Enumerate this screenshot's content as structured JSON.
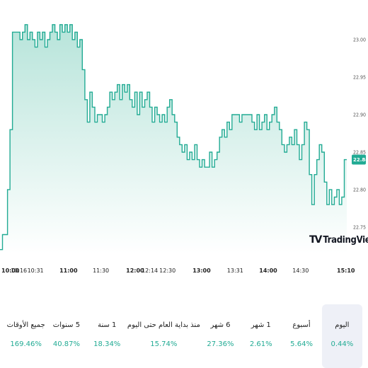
{
  "chart_data": {
    "type": "area",
    "y_ticks": [
      "23.00",
      "22.95",
      "22.90",
      "22.85",
      "22.80",
      "22.75"
    ],
    "ylim": [
      22.715,
      23.034
    ],
    "x_ticks": [
      {
        "label": "10:00",
        "major": true
      },
      {
        "label": "10:16",
        "major": false
      },
      {
        "label": "10:31",
        "major": false
      },
      {
        "label": "11:00",
        "major": true
      },
      {
        "label": "11:30",
        "major": false
      },
      {
        "label": "12:00",
        "major": true
      },
      {
        "label": "12:14",
        "major": false
      },
      {
        "label": "12:30",
        "major": false
      },
      {
        "label": "13:00",
        "major": true
      },
      {
        "label": "13:31",
        "major": false
      },
      {
        "label": "14:00",
        "major": true
      },
      {
        "label": "14:30",
        "major": false
      },
      {
        "label": "15:10",
        "major": true
      }
    ],
    "last_value": "22.84",
    "colors": {
      "line": "#22ab94",
      "fill_top": "#b7e4da",
      "fill_bottom": "#ffffff",
      "badge": "#22ab94"
    },
    "series_values": [
      22.72,
      22.74,
      22.74,
      22.8,
      22.88,
      23.01,
      23.01,
      23.01,
      23.0,
      23.01,
      23.02,
      23.0,
      23.01,
      23.0,
      22.99,
      23.01,
      23.0,
      23.01,
      22.99,
      23.0,
      23.01,
      23.02,
      23.01,
      23.0,
      23.02,
      23.01,
      23.02,
      23.01,
      23.02,
      23.0,
      23.01,
      22.99,
      23.0,
      22.96,
      22.92,
      22.89,
      22.93,
      22.91,
      22.89,
      22.9,
      22.9,
      22.89,
      22.9,
      22.91,
      22.93,
      22.92,
      22.93,
      22.94,
      22.92,
      22.94,
      22.93,
      22.94,
      22.92,
      22.91,
      22.93,
      22.9,
      22.93,
      22.91,
      22.92,
      22.93,
      22.91,
      22.89,
      22.91,
      22.9,
      22.89,
      22.9,
      22.89,
      22.91,
      22.92,
      22.9,
      22.89,
      22.87,
      22.86,
      22.85,
      22.86,
      22.84,
      22.85,
      22.84,
      22.86,
      22.84,
      22.83,
      22.84,
      22.83,
      22.83,
      22.85,
      22.83,
      22.84,
      22.85,
      22.87,
      22.88,
      22.87,
      22.89,
      22.88,
      22.9,
      22.9,
      22.9,
      22.89,
      22.9,
      22.9,
      22.9,
      22.9,
      22.89,
      22.88,
      22.9,
      22.88,
      22.89,
      22.9,
      22.88,
      22.89,
      22.9,
      22.91,
      22.89,
      22.88,
      22.86,
      22.85,
      22.86,
      22.87,
      22.86,
      22.88,
      22.86,
      22.84,
      22.86,
      22.89,
      22.88,
      22.82,
      22.78,
      22.82,
      22.84,
      22.86,
      22.85,
      22.81,
      22.78,
      22.8,
      22.78,
      22.79,
      22.8,
      22.78,
      22.79,
      22.84,
      22.84
    ]
  },
  "watermark": {
    "icon": "TV",
    "text": "TradingView"
  },
  "periods": [
    {
      "label": "اليوم",
      "value": "0.44%",
      "active": true
    },
    {
      "label": "أسبوع",
      "value": "5.64%",
      "active": false
    },
    {
      "label": "1 شهر",
      "value": "2.61%",
      "active": false
    },
    {
      "label": "6 شهر",
      "value": "27.36%",
      "active": false
    },
    {
      "label": "منذ بداية العام حتى اليوم",
      "value": "15.74%",
      "active": false
    },
    {
      "label": "1 سنة",
      "value": "18.34%",
      "active": false
    },
    {
      "label": "5 سنوات",
      "value": "40.87%",
      "active": false
    },
    {
      "label": "جميع الأوقات",
      "value": "169.46%",
      "active": false
    }
  ]
}
